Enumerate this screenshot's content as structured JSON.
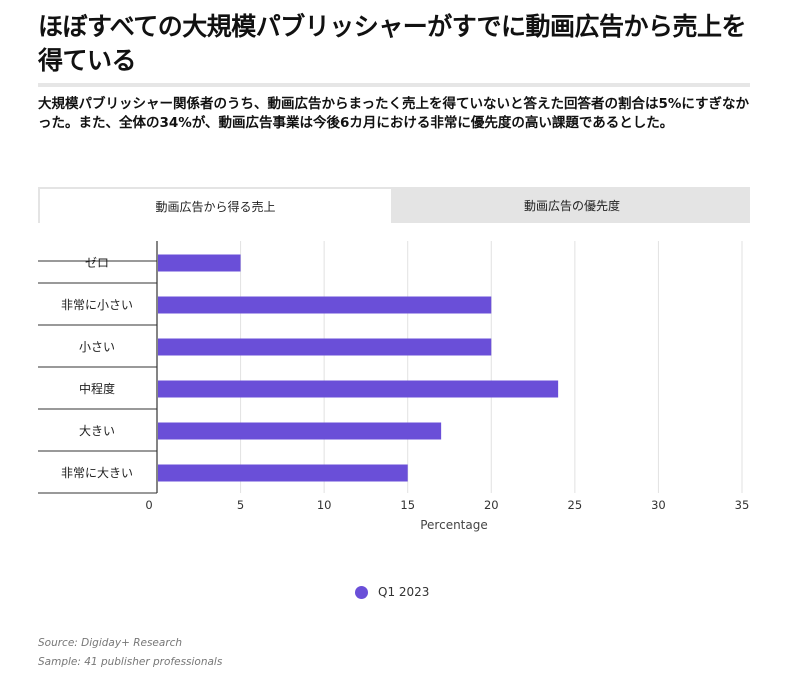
{
  "header": {
    "title": "ほぼすべての大規模パブリッシャーがすでに動画広告から売上を得ている",
    "subtitle": "大規模パブリッシャー関係者のうち、動画広告からまったく売上を得ていないと答えた回答者の割合は5%にすぎなかった。また、全体の34%が、動画広告事業は今後6カ月における非常に優先度の高い課題であるとした。"
  },
  "tabs": [
    {
      "label": "動画広告から得る売上",
      "active": true
    },
    {
      "label": "動画広告の優先度",
      "active": false
    }
  ],
  "legend": {
    "label": "Q1 2023"
  },
  "footer": {
    "source": "Source: Digiday+ Research",
    "sample": "Sample: 41 publisher professionals"
  },
  "colors": {
    "bar": "#6a4fd8",
    "grid": "#e2e2e2",
    "axis": "#333333"
  },
  "chart_data": {
    "type": "bar",
    "orientation": "horizontal",
    "title": "動画広告から得る売上",
    "categories": [
      "ゼロ",
      "非常に小さい",
      "小さい",
      "中程度",
      "大きい",
      "非常に大きい"
    ],
    "series": [
      {
        "name": "Q1 2023",
        "values": [
          5,
          20,
          20,
          24,
          17,
          15
        ]
      }
    ],
    "xlabel": "Percentage",
    "ylabel": "",
    "xlim": [
      0,
      35
    ],
    "xticks": [
      0,
      5,
      10,
      15,
      20,
      25,
      30,
      35
    ],
    "grid": true,
    "legend_position": "bottom-center"
  }
}
